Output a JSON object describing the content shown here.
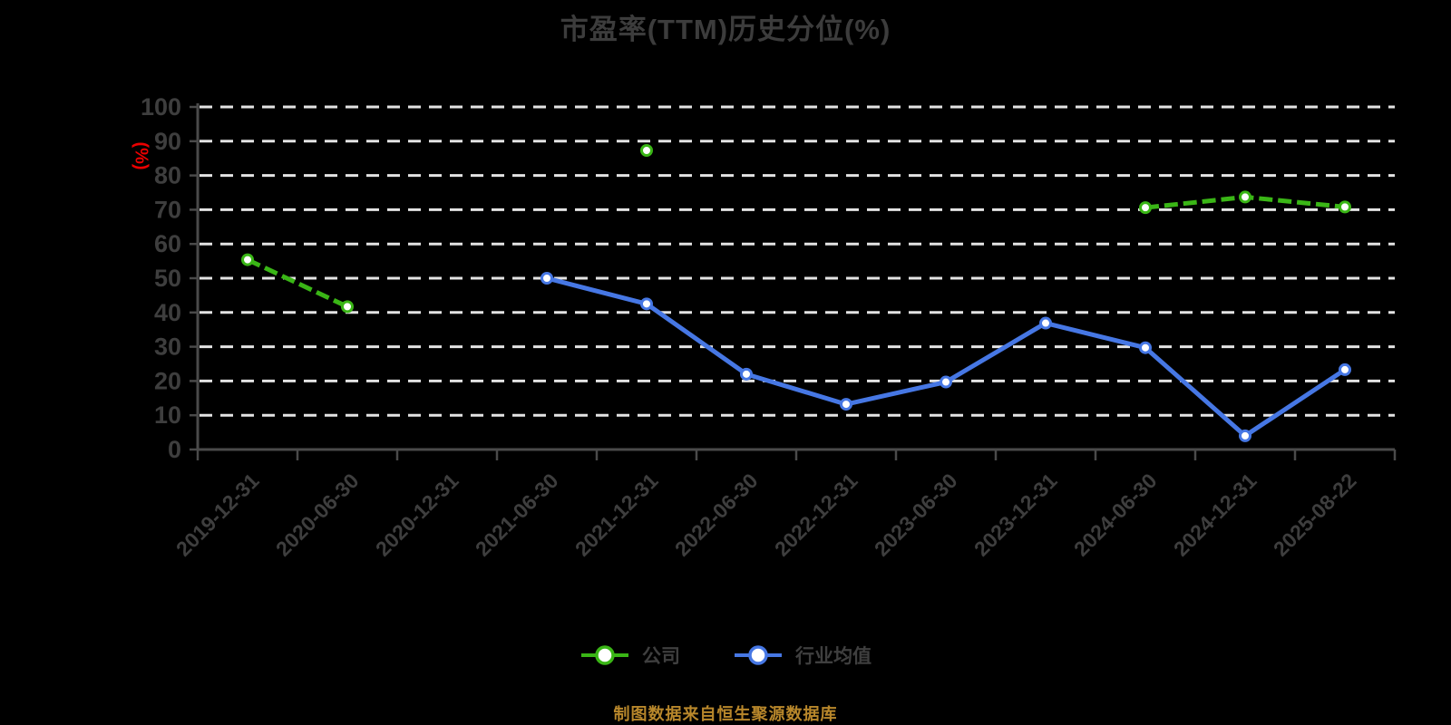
{
  "chart_data": {
    "type": "line",
    "title": "市盈率(TTM)历史分位(%)",
    "y_unit_label": "(%)",
    "xlabel": "",
    "ylabel": "(%)",
    "ylim": [
      0,
      100
    ],
    "y_ticks": [
      0,
      10,
      20,
      30,
      40,
      50,
      60,
      70,
      80,
      90,
      100
    ],
    "grid": "horizontal-dashed-white",
    "legend_position": "bottom",
    "categories": [
      "2019-12-31",
      "2020-06-30",
      "2020-12-31",
      "2021-06-30",
      "2021-12-31",
      "2022-06-30",
      "2022-12-31",
      "2023-06-30",
      "2023-12-31",
      "2024-06-30",
      "2024-12-31",
      "2025-08-22"
    ],
    "series": [
      {
        "name": "公司",
        "color": "#3AB616",
        "line_style": "dashed",
        "marker": "hollow-circle",
        "values": [
          55.4,
          41.7,
          null,
          null,
          87.3,
          null,
          null,
          null,
          null,
          70.6,
          73.7,
          70.8
        ]
      },
      {
        "name": "行业均值",
        "color": "#4677E4",
        "line_style": "solid",
        "marker": "hollow-circle",
        "values": [
          null,
          null,
          null,
          50,
          42.5,
          22,
          13.2,
          19.7,
          36.9,
          29.7,
          4,
          23.3
        ]
      }
    ]
  },
  "caption": "制图数据来自恒生聚源数据库",
  "colors": {
    "background": "#000000",
    "title_text": "#3C3C3C",
    "axis_line": "#4A4A4A",
    "axis_label": "#3E3E3E",
    "gridline": "#E3E3E3",
    "y_unit_red": "#EC0000",
    "caption_gold": "#B8872B",
    "series_company_green": "#3AB616",
    "series_industry_blue": "#4677E4",
    "marker_fill": "#FFFFFF"
  }
}
